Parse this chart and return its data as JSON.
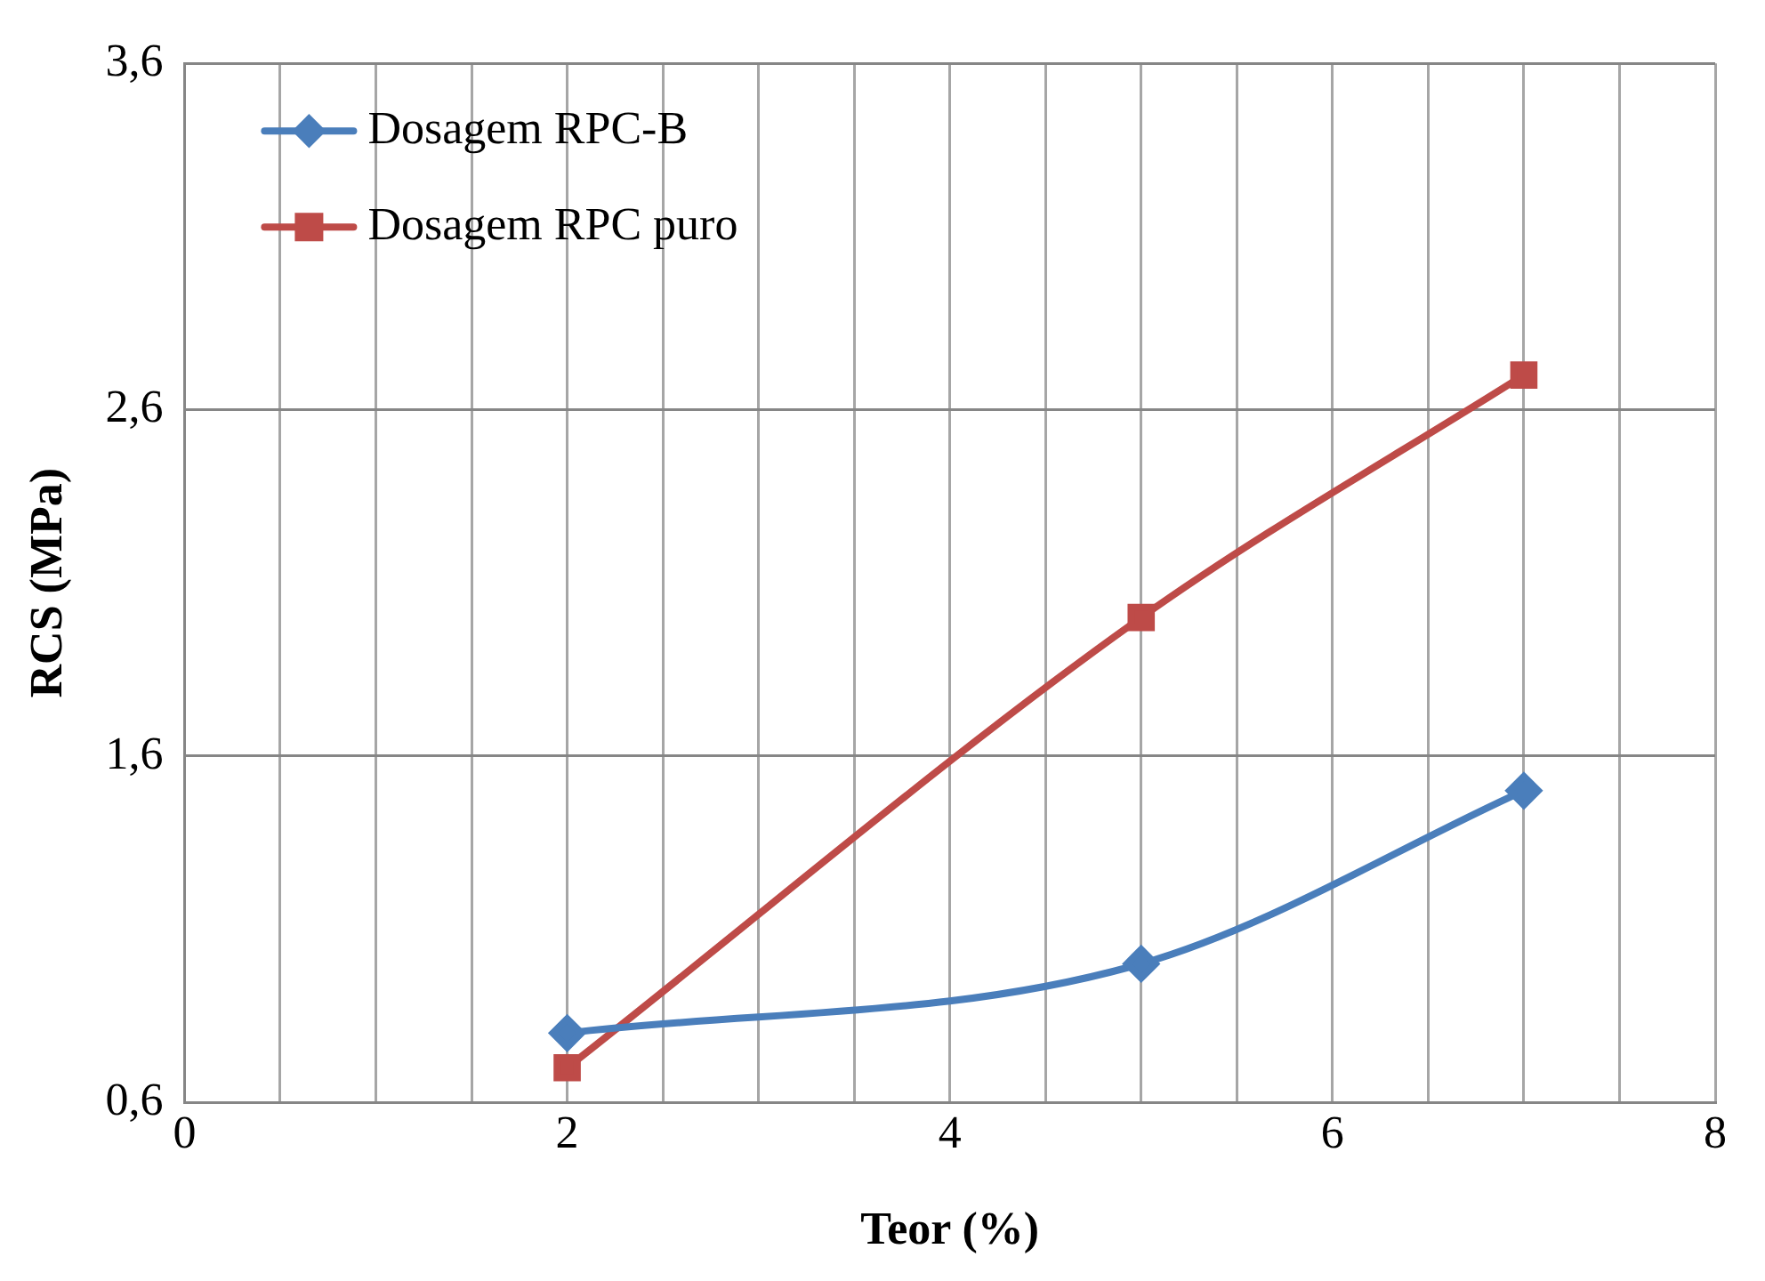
{
  "chart_data": {
    "type": "line",
    "xlabel": "Teor (%)",
    "ylabel": "RCS (MPa)",
    "x": [
      2,
      5,
      7
    ],
    "series": [
      {
        "name": "Dosagem RPC-B",
        "color": "#4a7ebb",
        "values": [
          0.8,
          1.0,
          1.5
        ],
        "marker": "diamond"
      },
      {
        "name": "Dosagem RPC puro",
        "color": "#be4b48",
        "values": [
          0.7,
          2.0,
          2.7
        ],
        "marker": "square"
      }
    ],
    "xlim": [
      0,
      8
    ],
    "xticks": [
      0,
      {
        "value": 0.5,
        "label": null
      },
      {
        "value": 1,
        "label": null
      },
      {
        "value": 1.5,
        "label": null
      },
      2,
      {
        "value": 2.5,
        "label": null
      },
      {
        "value": 3,
        "label": null
      },
      {
        "value": 3.5,
        "label": null
      },
      4,
      {
        "value": 4.5,
        "label": null
      },
      {
        "value": 5,
        "label": null
      },
      {
        "value": 5.5,
        "label": null
      },
      6,
      {
        "value": 6.5,
        "label": null
      },
      {
        "value": 7,
        "label": null
      },
      {
        "value": 7.5,
        "label": null
      },
      8
    ],
    "ylim": [
      0.6,
      3.6
    ],
    "yticks": [
      {
        "value": 0.6,
        "label": "0,6"
      },
      {
        "value": 1.6,
        "label": "1,6"
      },
      {
        "value": 2.6,
        "label": "2,6"
      },
      {
        "value": 3.6,
        "label": "3,6"
      }
    ],
    "grid": true,
    "legend": "top left",
    "line_style": "solid"
  }
}
